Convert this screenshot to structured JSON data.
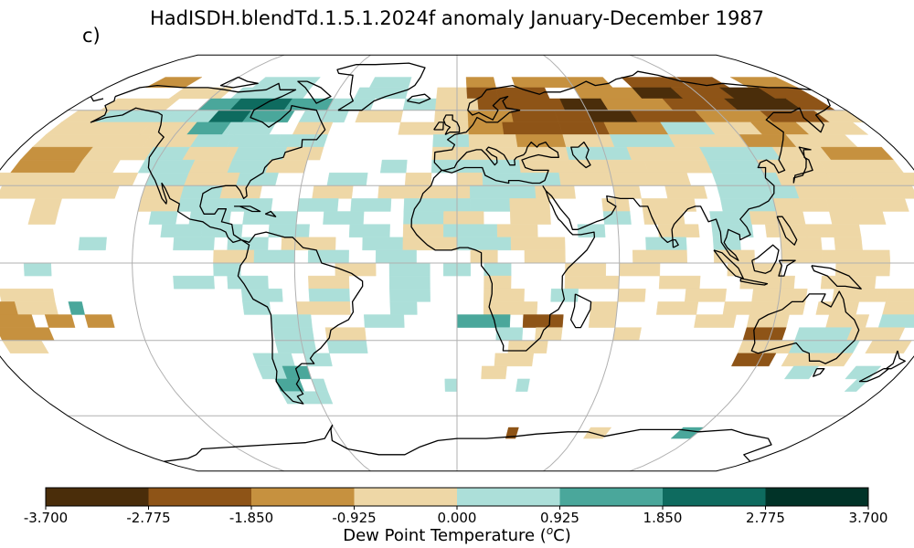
{
  "title": "HadISDH.blendTd.1.5.1.2024f anomaly January-December 1987",
  "panel_label": "c)",
  "colorbar": {
    "label_prefix": "Dew Point Temperature (",
    "label_unit_sup": "o",
    "label_suffix": "C)",
    "ticks": [
      "-3.700",
      "-2.775",
      "-1.850",
      "-0.925",
      "0.000",
      "0.925",
      "1.850",
      "2.775",
      "3.700"
    ],
    "colors": [
      "#4a2d0a",
      "#8e5417",
      "#c6913f",
      "#eed7a6",
      "#acdfd9",
      "#4aa79b",
      "#0e6b5f",
      "#013328"
    ]
  },
  "colors": {
    "coast": "#000000",
    "grid": "#b0b0b0",
    "ocean": "#ffffff"
  },
  "map": {
    "projection": "Robinson",
    "grid_spacing_deg": 30,
    "cell_size_deg": 5
  }
}
